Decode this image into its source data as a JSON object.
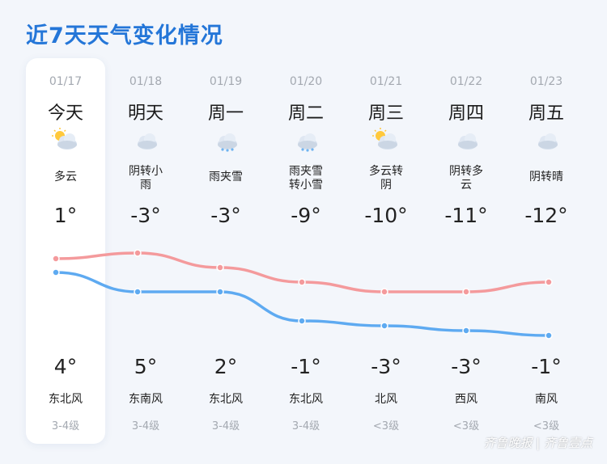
{
  "title": "近7天天气变化情况",
  "colors": {
    "high_line": "#f49a9c",
    "low_line": "#5eaaf1",
    "title": "#2476d8"
  },
  "days": [
    {
      "date": "01/17",
      "day": "今天",
      "icon": "partly-cloudy-icon",
      "cond1": "多云",
      "cond2": "",
      "high": "1°",
      "low": "4°",
      "wind": "东北风",
      "level": "3-4级",
      "high_value": 1,
      "low_value": 4
    },
    {
      "date": "01/18",
      "day": "明天",
      "icon": "cloudy-icon",
      "cond1": "阴转小",
      "cond2": "雨",
      "high": "-3°",
      "low": "5°",
      "wind": "东南风",
      "level": "3-4级",
      "high_value": -3,
      "low_value": 5
    },
    {
      "date": "01/19",
      "day": "周一",
      "icon": "sleet-icon",
      "cond1": "雨夹雪",
      "cond2": "",
      "high": "-3°",
      "low": "2°",
      "wind": "东北风",
      "level": "3-4级",
      "high_value": -3,
      "low_value": 2
    },
    {
      "date": "01/20",
      "day": "周二",
      "icon": "sleet-icon",
      "cond1": "雨夹雪",
      "cond2": "转小雪",
      "high": "-9°",
      "low": "-1°",
      "wind": "东北风",
      "level": "3-4级",
      "high_value": -9,
      "low_value": -1
    },
    {
      "date": "01/21",
      "day": "周三",
      "icon": "partly-cloudy-icon",
      "cond1": "多云转",
      "cond2": "阴",
      "high": "-10°",
      "low": "-3°",
      "wind": "北风",
      "level": "<3级",
      "high_value": -10,
      "low_value": -3
    },
    {
      "date": "01/22",
      "day": "周四",
      "icon": "cloudy-icon",
      "cond1": "阴转多",
      "cond2": "云",
      "high": "-11°",
      "low": "-3°",
      "wind": "西风",
      "level": "<3级",
      "high_value": -11,
      "low_value": -3
    },
    {
      "date": "01/23",
      "day": "周五",
      "icon": "cloudy-icon",
      "cond1": "阴转晴",
      "cond2": "",
      "high": "-12°",
      "low": "-1°",
      "wind": "南风",
      "level": "<3级",
      "high_value": -12,
      "low_value": -1
    }
  ],
  "watermark": "齐鲁晚报 | 齐鲁壹点"
}
